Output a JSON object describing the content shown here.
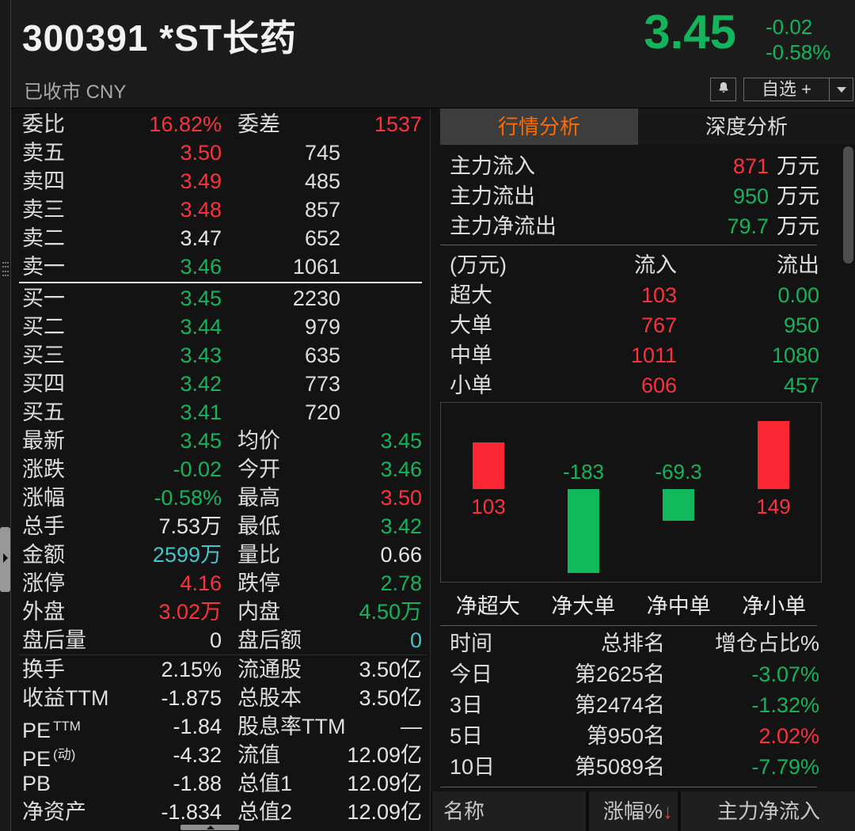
{
  "colors": {
    "red": "#fb323e",
    "green": "#14b45c",
    "cyan": "#40c5cb",
    "orange": "#ff6a00"
  },
  "header": {
    "title": "300391 *ST长药",
    "status": "已收市 CNY",
    "price": "3.45",
    "change": "-0.02",
    "change_pct": "-0.58%",
    "watchlist_label": "自选 +"
  },
  "icons": {
    "bell": "bell-icon",
    "watch_caret": "chevron-down-icon",
    "grip": "drag-grip-icon",
    "expander": "expand-right-icon",
    "sort": "sort-down-arrow-icon"
  },
  "order_book": {
    "summary": {
      "l1": "委比",
      "v1": "16.82%",
      "c1": "red",
      "l2": "委差",
      "v2": "1537",
      "c2": "red"
    },
    "asks": [
      {
        "label": "卖五",
        "price": "3.50",
        "color": "red",
        "vol": "745"
      },
      {
        "label": "卖四",
        "price": "3.49",
        "color": "red",
        "vol": "485"
      },
      {
        "label": "卖三",
        "price": "3.48",
        "color": "red",
        "vol": "857"
      },
      {
        "label": "卖二",
        "price": "3.47",
        "color": "white",
        "vol": "652"
      },
      {
        "label": "卖一",
        "price": "3.46",
        "color": "green",
        "vol": "1061"
      }
    ],
    "bids": [
      {
        "label": "买一",
        "price": "3.45",
        "color": "green",
        "vol": "2230"
      },
      {
        "label": "买二",
        "price": "3.44",
        "color": "green",
        "vol": "979"
      },
      {
        "label": "买三",
        "price": "3.43",
        "color": "green",
        "vol": "635"
      },
      {
        "label": "买四",
        "price": "3.42",
        "color": "green",
        "vol": "773"
      },
      {
        "label": "买五",
        "price": "3.41",
        "color": "green",
        "vol": "720"
      }
    ]
  },
  "stats_rows": [
    {
      "l1": "最新",
      "v1": "3.45",
      "c1": "green",
      "l2": "均价",
      "v2": "3.45",
      "c2": "green"
    },
    {
      "l1": "涨跌",
      "v1": "-0.02",
      "c1": "green",
      "l2": "今开",
      "v2": "3.46",
      "c2": "green"
    },
    {
      "l1": "涨幅",
      "v1": "-0.58%",
      "c1": "green",
      "l2": "最高",
      "v2": "3.50",
      "c2": "red"
    },
    {
      "l1": "总手",
      "v1": "7.53万",
      "c1": "white",
      "l2": "最低",
      "v2": "3.42",
      "c2": "green"
    },
    {
      "l1": "金额",
      "v1": "2599万",
      "c1": "cyan",
      "l2": "量比",
      "v2": "0.66",
      "c2": "white"
    },
    {
      "l1": "涨停",
      "v1": "4.16",
      "c1": "red",
      "l2": "跌停",
      "v2": "2.78",
      "c2": "green"
    },
    {
      "l1": "外盘",
      "v1": "3.02万",
      "c1": "red",
      "l2": "内盘",
      "v2": "4.50万",
      "c2": "green"
    },
    {
      "l1": "盘后量",
      "v1": "0",
      "c1": "white",
      "l2": "盘后额",
      "v2": "0",
      "c2": "cyan",
      "divider_after": true
    },
    {
      "l1": "换手",
      "v1": "2.15%",
      "c1": "white",
      "l2": "流通股",
      "v2": "3.50亿",
      "c2": "white"
    },
    {
      "l1": "收益TTM",
      "v1": "-1.875",
      "c1": "white",
      "l2": "总股本",
      "v2": "3.50亿",
      "c2": "white"
    },
    {
      "l1": "PE",
      "sup1": "TTM",
      "v1": "-1.84",
      "c1": "white",
      "l2": "股息率TTM",
      "v2": "—",
      "c2": "white"
    },
    {
      "l1": "PE",
      "sup1": "(动)",
      "v1": "-4.32",
      "c1": "white",
      "l2": "流值",
      "v2": "12.09亿",
      "c2": "white"
    },
    {
      "l1": "PB",
      "v1": "-1.88",
      "c1": "white",
      "l2": "总值1",
      "v2": "12.09亿",
      "c2": "white"
    },
    {
      "l1": "净资产",
      "v1": "-1.834",
      "c1": "white",
      "l2": "总值2",
      "v2": "12.09亿",
      "c2": "white"
    }
  ],
  "tabs": [
    {
      "label": "行情分析",
      "active": true
    },
    {
      "label": "深度分析",
      "active": false
    }
  ],
  "money_flow": {
    "rows": [
      {
        "label": "主力流入",
        "value": "871",
        "color": "red",
        "unit": "万元"
      },
      {
        "label": "主力流出",
        "value": "950",
        "color": "green",
        "unit": "万元"
      },
      {
        "label": "主力净流出",
        "value": "79.7",
        "color": "green",
        "unit": "万元"
      }
    ],
    "table": {
      "headers": [
        "(万元)",
        "流入",
        "流出"
      ],
      "rows": [
        {
          "label": "超大",
          "inflow": "103",
          "outflow": "0.00"
        },
        {
          "label": "大单",
          "inflow": "767",
          "outflow": "950"
        },
        {
          "label": "中单",
          "inflow": "1011",
          "outflow": "1080"
        },
        {
          "label": "小单",
          "inflow": "606",
          "outflow": "457"
        }
      ]
    }
  },
  "chart_data": {
    "type": "bar",
    "title": "主力净流向柱状图",
    "categories": [
      "净超大",
      "净大单",
      "净中单",
      "净小单"
    ],
    "values": [
      103,
      -183,
      -69.3,
      149
    ],
    "labels": [
      "103",
      "-183",
      "-69.3",
      "149"
    ],
    "unit": "万元",
    "positive_color": "#fb2634",
    "negative_color": "#12b85c",
    "baseline": 0,
    "grid": false,
    "legend": false
  },
  "rank_table": {
    "headers": [
      "时间",
      "总排名",
      "增仓占比%"
    ],
    "rows": [
      {
        "time": "今日",
        "rank": "第2625名",
        "pct": "-3.07%",
        "color": "green"
      },
      {
        "time": "3日",
        "rank": "第2474名",
        "pct": "-1.32%",
        "color": "green"
      },
      {
        "time": "5日",
        "rank": "第950名",
        "pct": "2.02%",
        "color": "red"
      },
      {
        "time": "10日",
        "rank": "第5089名",
        "pct": "-7.79%",
        "color": "green"
      }
    ]
  },
  "bottom_bar": {
    "name_label": "名称",
    "change_label": "涨幅%",
    "sort_arrow": "↓",
    "inflow_label": "主力净流入"
  }
}
